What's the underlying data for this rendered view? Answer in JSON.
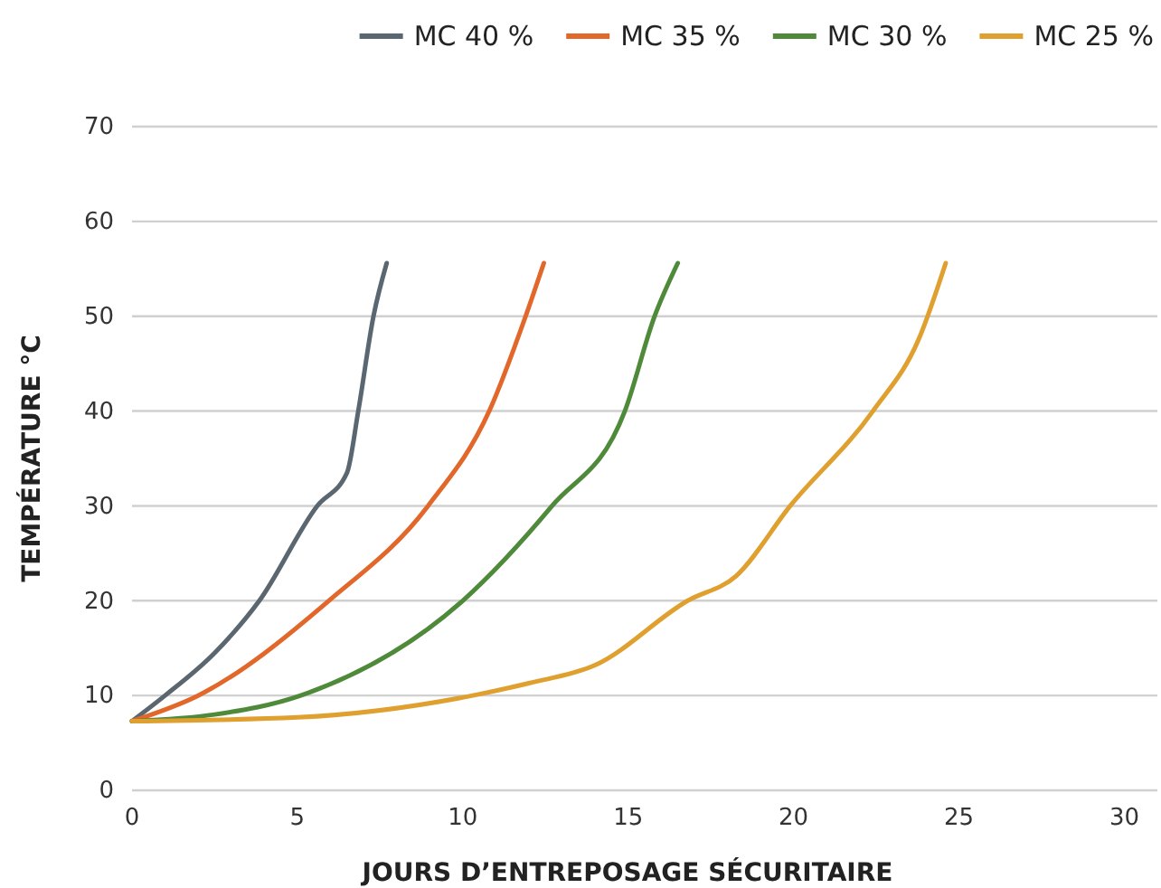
{
  "chart_data": {
    "type": "line",
    "xlabel": "JOURS D’ENTREPOSAGE SÉCURITAIRE",
    "ylabel": "TEMPÉRATURE °C",
    "xlim": [
      0,
      31
    ],
    "xticks": [
      0,
      5,
      10,
      15,
      20,
      25,
      30
    ],
    "ylim": [
      0,
      70
    ],
    "yticks": [
      0,
      10,
      20,
      30,
      40,
      50,
      60,
      70
    ],
    "grid": "y",
    "legend": "top right",
    "marker": "none",
    "line_style": "solid",
    "series": [
      {
        "name": "MC 40 %",
        "color": "#5b6770",
        "x": [
          0,
          1,
          2.5,
          3.85,
          5.6,
          6.5,
          6.84,
          7.3,
          7.7
        ],
        "values": [
          7.3,
          10,
          14.5,
          20,
          30,
          33.5,
          40,
          50,
          55.6
        ]
      },
      {
        "name": "MC 35 %",
        "color": "#e2672a",
        "x": [
          0,
          2,
          5.95,
          8.95,
          10.8,
          11.9,
          12.45
        ],
        "values": [
          7.3,
          10,
          20,
          30,
          40,
          50,
          55.6
        ]
      },
      {
        "name": "MC 30 %",
        "color": "#4f8a3a",
        "x": [
          0,
          2.5,
          5.1,
          10,
          12.7,
          14.9,
          15.8,
          16.5
        ],
        "values": [
          7.3,
          8,
          10,
          20,
          30,
          40,
          50,
          55.6
        ]
      },
      {
        "name": "MC 25 %",
        "color": "#e0a030",
        "x": [
          0,
          5,
          10.3,
          12,
          14,
          16.8,
          18.26,
          19.9,
          22.4,
          23.8,
          24.6
        ],
        "values": [
          7.3,
          7.7,
          10,
          11.3,
          13.2,
          20,
          22.6,
          30,
          40,
          47.7,
          55.6
        ]
      }
    ]
  }
}
